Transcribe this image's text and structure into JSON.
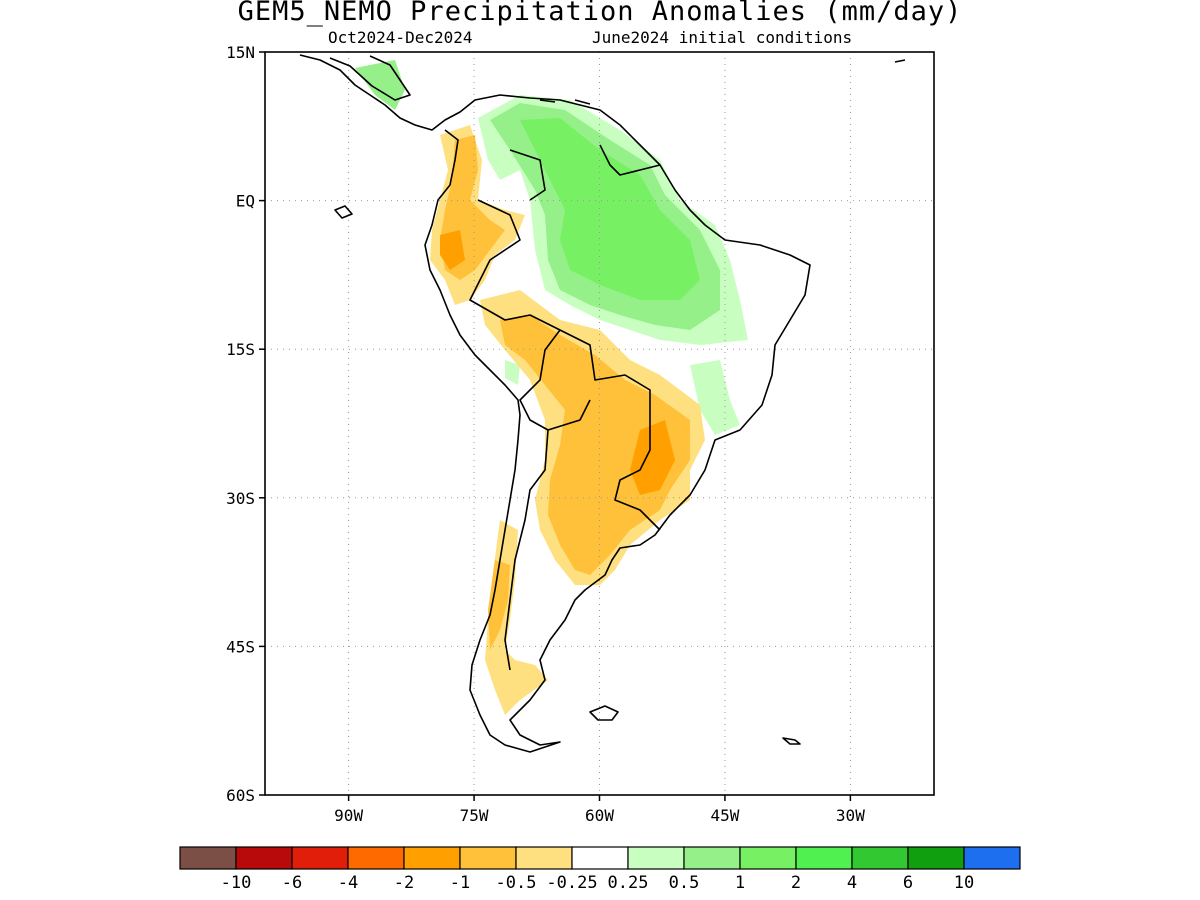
{
  "title": "GEM5_NEMO Precipitation Anomalies (mm/day)",
  "period": "Oct2024-Dec2024",
  "init": "June2024 initial conditions",
  "axes": {
    "lat_ticks": [
      "15N",
      "EQ",
      "15S",
      "30S",
      "45S",
      "60S"
    ],
    "lon_ticks": [
      "90W",
      "75W",
      "60W",
      "45W",
      "30W"
    ],
    "lat_range": [
      -60,
      15
    ],
    "lon_range": [
      -100,
      -20
    ]
  },
  "colorbar": {
    "colors": [
      "#7b4f45",
      "#b80a0a",
      "#e01e0a",
      "#ff6a00",
      "#ffa000",
      "#ffc03a",
      "#ffe080",
      "#ffffff",
      "#c8ffc0",
      "#96f08a",
      "#78f064",
      "#50f050",
      "#32c832",
      "#0f9f0f",
      "#1e6ef0"
    ],
    "labels": [
      "-10",
      "-6",
      "-4",
      "-2",
      "-1",
      "-0.5",
      "-0.25",
      "0.25",
      "0.5",
      "1",
      "2",
      "4",
      "6",
      "10"
    ]
  },
  "regions": [
    {
      "name": "northern-south-america-wet",
      "level": "0.5"
    },
    {
      "name": "amazon-wet-core",
      "level": "1"
    },
    {
      "name": "andes-colombia-ecuador-dry",
      "level": "-1"
    },
    {
      "name": "southern-brazil-paraguay-dry",
      "level": "-1"
    },
    {
      "name": "patagonia-chile-dry",
      "level": "-0.5"
    }
  ]
}
